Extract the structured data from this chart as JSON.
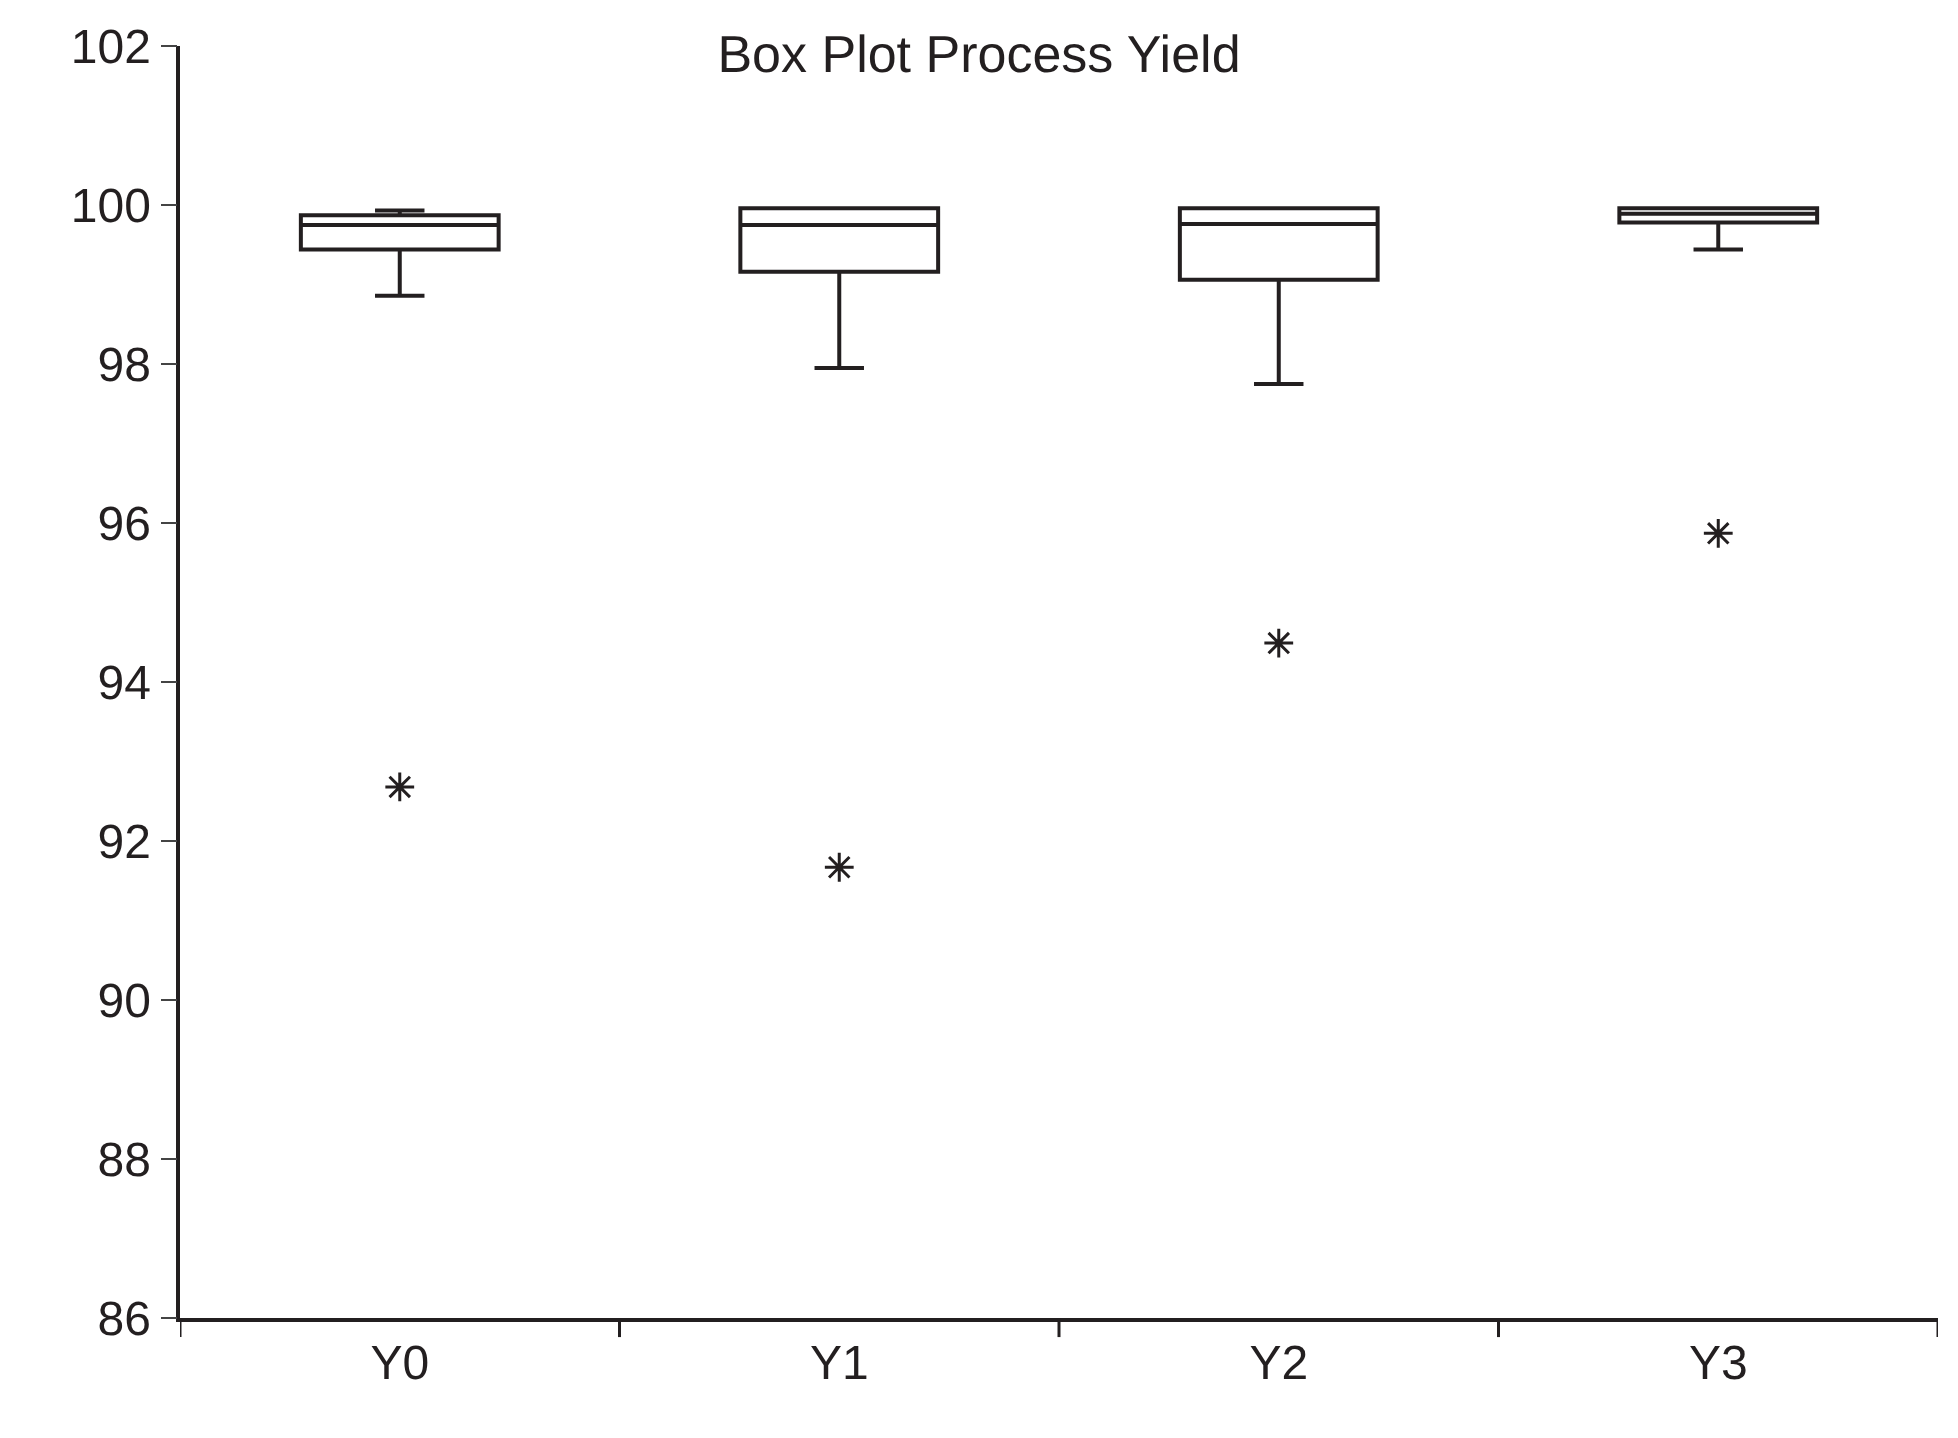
{
  "chart_data": {
    "type": "box",
    "title": "Box Plot Process Yield",
    "categories": [
      "Y0",
      "Y1",
      "Y2",
      "Y3"
    ],
    "boxes": [
      {
        "low": 98.86,
        "q1": 99.44,
        "median": 99.75,
        "q3": 99.87,
        "high": 99.93,
        "outliers": [
          92.68
        ]
      },
      {
        "low": 97.95,
        "q1": 99.16,
        "median": 99.75,
        "q3": 99.96,
        "high": 99.96,
        "outliers": [
          91.67
        ]
      },
      {
        "low": 97.75,
        "q1": 99.06,
        "median": 99.76,
        "q3": 99.96,
        "high": 99.96,
        "outliers": [
          94.49
        ]
      },
      {
        "low": 99.44,
        "q1": 99.78,
        "median": 99.89,
        "q3": 99.96,
        "high": 99.96,
        "outliers": [
          95.87
        ]
      }
    ],
    "color": "#231f20",
    "ylim": [
      86,
      102
    ],
    "yticks": [
      86,
      88,
      90,
      92,
      94,
      96,
      98,
      100,
      102
    ],
    "marker": "star"
  }
}
